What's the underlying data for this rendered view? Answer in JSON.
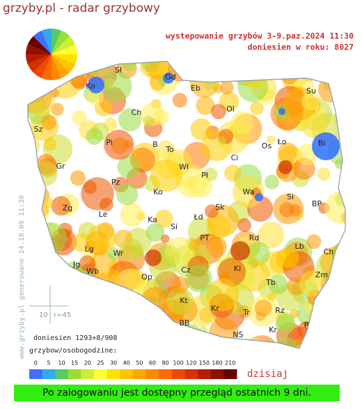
{
  "header": {
    "title": "grzyby.pl - radar grzybowy"
  },
  "map": {
    "period": "wystepowanie grzybów 3-9.paz.2024 11:30",
    "reports_year": "doniesien w roku: 8027",
    "generated": "www.grzyby.pl generowane 24.10.09 11:30",
    "scale_label": "10",
    "radius": "r=45",
    "reports": "doniesien 1293+8/908",
    "unit": "grzybow/osobogodzine:",
    "today": "dzisiaj",
    "cities": [
      "Sł",
      "Gd",
      "Ko",
      "Eb",
      "Su",
      "Ch",
      "Ol",
      "Sz",
      "Pi",
      "B",
      "To",
      "Ło",
      "Os",
      "Bi",
      "Ci",
      "Gr",
      "Wł",
      "Pł",
      "Pz",
      "Wa",
      "Ko",
      "Si",
      "BP",
      "Sk",
      "Zg",
      "Le",
      "Ka",
      "Łd",
      "Si",
      "PT",
      "Rd",
      "Lb",
      "Ch",
      "Lg",
      "Wr",
      "Ki",
      "Cz",
      "Jg",
      "Wb",
      "Op",
      "Zm",
      "Tb",
      "Kt",
      "Kr",
      "Tr",
      "Rz",
      "BB",
      "P",
      "Kr",
      "NS"
    ]
  },
  "legend": {
    "ticks": [
      0,
      5,
      10,
      15,
      20,
      25,
      30,
      40,
      50,
      60,
      80,
      100,
      120,
      150,
      180,
      210
    ],
    "colors": [
      "#3f6fff",
      "#33aaee",
      "#55cc66",
      "#99dd33",
      "#ccee33",
      "#ffff33",
      "#ffe000",
      "#ffc400",
      "#ffa800",
      "#ff8800",
      "#ff6a00",
      "#f04800",
      "#d83000",
      "#b81c00",
      "#921000",
      "#6a0000"
    ]
  },
  "footer": {
    "notice": "Po zalogowaniu jest dostępny przegląd ostatnich 9 dni."
  }
}
